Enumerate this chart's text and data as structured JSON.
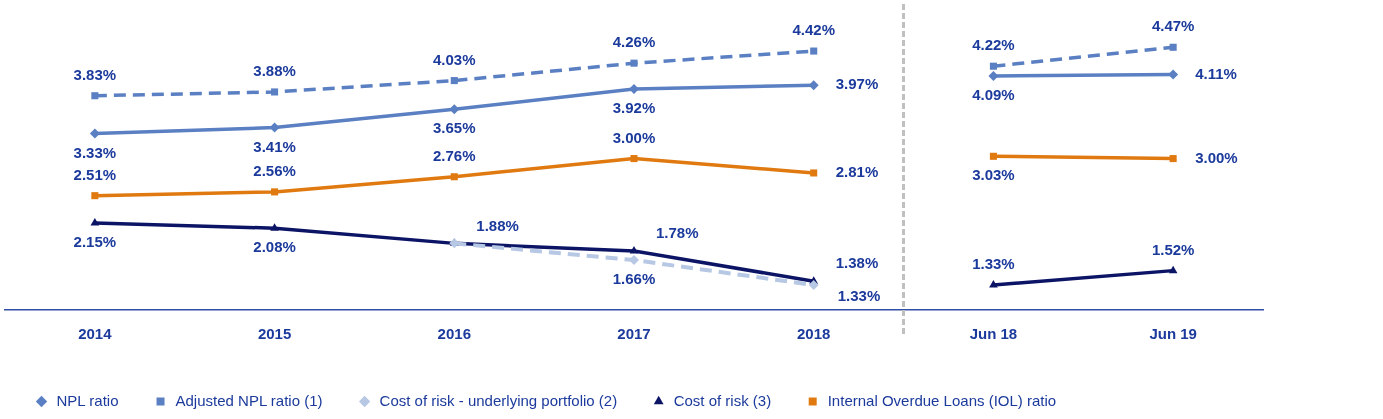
{
  "chart_data": {
    "type": "line",
    "categories": [
      "2014",
      "2015",
      "2016",
      "2017",
      "2018",
      "Jun 18",
      "Jun 19"
    ],
    "series": [
      {
        "name": "NPL ratio",
        "color": "#5a7fc2",
        "marker": "diamond",
        "line_style": "solid",
        "values": [
          3.33,
          3.41,
          3.65,
          3.92,
          3.97,
          null,
          null
        ],
        "value_labels": [
          "3.33%",
          "3.41%",
          "3.65%",
          "3.92%",
          "3.97%",
          null,
          null
        ]
      },
      {
        "color": "#5a7fc2",
        "marker": "diamond",
        "line_style": "solid",
        "values": [
          null,
          null,
          null,
          null,
          null,
          4.09,
          4.11
        ],
        "value_labels": [
          null,
          null,
          null,
          null,
          null,
          "4.09%",
          "4.11%"
        ]
      },
      {
        "name": "Adjusted NPL ratio (1)",
        "color": "#5a7fc2",
        "marker": "square",
        "line_style": "dashed",
        "values": [
          3.83,
          3.88,
          4.03,
          4.26,
          4.42,
          null,
          null
        ],
        "value_labels": [
          "3.83%",
          "3.88%",
          "4.03%",
          "4.26%",
          "4.42%",
          null,
          null
        ]
      },
      {
        "color": "#5a7fc2",
        "marker": "square",
        "line_style": "dashed",
        "values": [
          null,
          null,
          null,
          null,
          null,
          4.22,
          4.47
        ],
        "value_labels": [
          null,
          null,
          null,
          null,
          null,
          "4.22%",
          "4.47%"
        ]
      },
      {
        "name": "Cost of risk - underlying portfolio (2)",
        "color": "#b7c8e4",
        "marker": "diamond",
        "line_style": "dashed",
        "values": [
          null,
          null,
          1.88,
          1.66,
          1.33,
          null,
          null
        ],
        "value_labels": [
          null,
          null,
          null,
          "1.66%",
          "1.33%",
          null,
          null
        ]
      },
      {
        "name": "Cost of risk (3)",
        "color": "#0c1466",
        "marker": "triangle",
        "line_style": "solid",
        "values": [
          2.15,
          2.08,
          1.88,
          1.78,
          1.38,
          null,
          null
        ],
        "value_labels": [
          "2.15%",
          "2.08%",
          "1.88%",
          "1.78%",
          "1.38%",
          null,
          null
        ]
      },
      {
        "color": "#0c1466",
        "marker": "triangle",
        "line_style": "solid",
        "values": [
          null,
          null,
          null,
          null,
          null,
          1.33,
          1.52
        ],
        "value_labels": [
          null,
          null,
          null,
          null,
          null,
          "1.33%",
          "1.52%"
        ]
      },
      {
        "name": "Internal Overdue Loans (IOL) ratio",
        "color": "#e07a10",
        "marker": "square",
        "line_style": "solid",
        "values": [
          2.51,
          2.56,
          2.76,
          3.0,
          2.81,
          null,
          null
        ],
        "value_labels": [
          "2.51%",
          "2.56%",
          "2.76%",
          "3.00%",
          "2.81%",
          null,
          null
        ]
      },
      {
        "color": "#e07a10",
        "marker": "square",
        "line_style": "solid",
        "values": [
          null,
          null,
          null,
          null,
          null,
          3.03,
          3.0
        ],
        "value_labels": [
          null,
          null,
          null,
          null,
          null,
          "3.03%",
          "3.00%"
        ]
      }
    ],
    "legend": "bottom",
    "grid": false,
    "tick_labels": "x"
  }
}
